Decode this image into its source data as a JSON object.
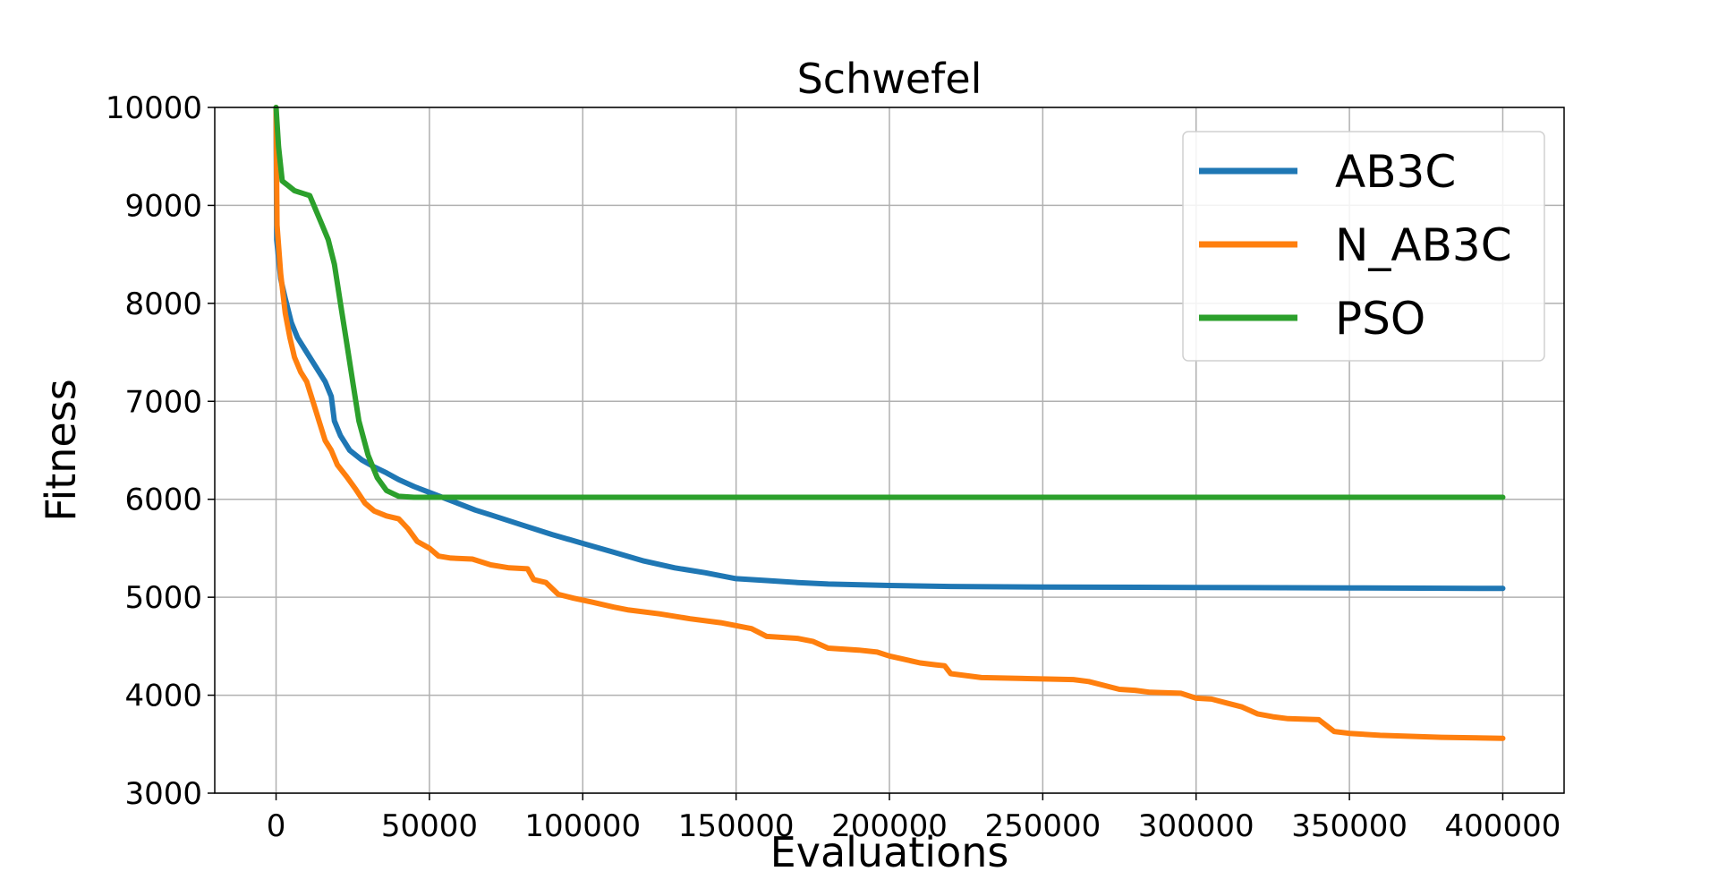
{
  "chart_data": {
    "type": "line",
    "title": "Schwefel",
    "xlabel": "Evaluations",
    "ylabel": "Fitness",
    "xlim": [
      -20000,
      420000
    ],
    "ylim": [
      3000,
      10000
    ],
    "xticks": [
      0,
      50000,
      100000,
      150000,
      200000,
      250000,
      300000,
      350000,
      400000
    ],
    "yticks": [
      3000,
      4000,
      5000,
      6000,
      7000,
      8000,
      9000,
      10000
    ],
    "grid": true,
    "legend_position": "top-right",
    "series": [
      {
        "name": "AB3C",
        "color": "#1f77b4",
        "points": [
          [
            0,
            10000
          ],
          [
            200,
            8650
          ],
          [
            1500,
            8250
          ],
          [
            3000,
            8050
          ],
          [
            5000,
            7800
          ],
          [
            7000,
            7650
          ],
          [
            10000,
            7500
          ],
          [
            13000,
            7350
          ],
          [
            16000,
            7200
          ],
          [
            18000,
            7050
          ],
          [
            19000,
            6800
          ],
          [
            21000,
            6650
          ],
          [
            24000,
            6500
          ],
          [
            28000,
            6400
          ],
          [
            32000,
            6330
          ],
          [
            36000,
            6270
          ],
          [
            40000,
            6200
          ],
          [
            45000,
            6130
          ],
          [
            50000,
            6070
          ],
          [
            55000,
            6010
          ],
          [
            60000,
            5950
          ],
          [
            65000,
            5890
          ],
          [
            70000,
            5840
          ],
          [
            80000,
            5740
          ],
          [
            90000,
            5640
          ],
          [
            100000,
            5550
          ],
          [
            110000,
            5460
          ],
          [
            120000,
            5370
          ],
          [
            130000,
            5300
          ],
          [
            140000,
            5250
          ],
          [
            150000,
            5190
          ],
          [
            160000,
            5170
          ],
          [
            170000,
            5150
          ],
          [
            180000,
            5135
          ],
          [
            200000,
            5120
          ],
          [
            220000,
            5110
          ],
          [
            250000,
            5105
          ],
          [
            300000,
            5100
          ],
          [
            350000,
            5095
          ],
          [
            400000,
            5090
          ]
        ]
      },
      {
        "name": "N_AB3C",
        "color": "#ff7f0e",
        "points": [
          [
            0,
            10000
          ],
          [
            300,
            8800
          ],
          [
            1500,
            8300
          ],
          [
            3000,
            7900
          ],
          [
            4500,
            7650
          ],
          [
            6000,
            7450
          ],
          [
            8000,
            7300
          ],
          [
            10000,
            7200
          ],
          [
            12000,
            7000
          ],
          [
            14000,
            6800
          ],
          [
            16000,
            6600
          ],
          [
            18000,
            6500
          ],
          [
            20000,
            6350
          ],
          [
            23000,
            6230
          ],
          [
            26000,
            6100
          ],
          [
            29000,
            5960
          ],
          [
            32000,
            5880
          ],
          [
            36000,
            5830
          ],
          [
            40000,
            5800
          ],
          [
            43000,
            5700
          ],
          [
            46000,
            5570
          ],
          [
            50000,
            5500
          ],
          [
            53000,
            5420
          ],
          [
            57000,
            5400
          ],
          [
            64000,
            5390
          ],
          [
            70000,
            5330
          ],
          [
            76000,
            5300
          ],
          [
            82000,
            5290
          ],
          [
            84000,
            5180
          ],
          [
            88000,
            5150
          ],
          [
            92000,
            5030
          ],
          [
            97000,
            4990
          ],
          [
            103000,
            4950
          ],
          [
            110000,
            4900
          ],
          [
            115000,
            4870
          ],
          [
            125000,
            4830
          ],
          [
            135000,
            4780
          ],
          [
            145000,
            4740
          ],
          [
            155000,
            4680
          ],
          [
            160000,
            4600
          ],
          [
            170000,
            4580
          ],
          [
            175000,
            4550
          ],
          [
            180000,
            4480
          ],
          [
            190000,
            4460
          ],
          [
            196000,
            4440
          ],
          [
            200000,
            4400
          ],
          [
            210000,
            4330
          ],
          [
            215000,
            4310
          ],
          [
            218000,
            4300
          ],
          [
            220000,
            4220
          ],
          [
            230000,
            4180
          ],
          [
            245000,
            4170
          ],
          [
            260000,
            4160
          ],
          [
            265000,
            4140
          ],
          [
            270000,
            4100
          ],
          [
            275000,
            4060
          ],
          [
            280000,
            4050
          ],
          [
            285000,
            4030
          ],
          [
            295000,
            4020
          ],
          [
            300000,
            3970
          ],
          [
            305000,
            3960
          ],
          [
            310000,
            3920
          ],
          [
            315000,
            3880
          ],
          [
            320000,
            3810
          ],
          [
            325000,
            3780
          ],
          [
            330000,
            3760
          ],
          [
            340000,
            3750
          ],
          [
            345000,
            3630
          ],
          [
            350000,
            3610
          ],
          [
            360000,
            3590
          ],
          [
            370000,
            3580
          ],
          [
            380000,
            3570
          ],
          [
            400000,
            3560
          ]
        ]
      },
      {
        "name": "PSO",
        "color": "#2ca02c",
        "points": [
          [
            0,
            10000
          ],
          [
            800,
            9600
          ],
          [
            2000,
            9250
          ],
          [
            4000,
            9200
          ],
          [
            6000,
            9150
          ],
          [
            9000,
            9120
          ],
          [
            11000,
            9100
          ],
          [
            13000,
            8950
          ],
          [
            15000,
            8800
          ],
          [
            17000,
            8650
          ],
          [
            19000,
            8400
          ],
          [
            21000,
            8000
          ],
          [
            23000,
            7600
          ],
          [
            25000,
            7200
          ],
          [
            27000,
            6800
          ],
          [
            30000,
            6450
          ],
          [
            33000,
            6220
          ],
          [
            36000,
            6090
          ],
          [
            40000,
            6030
          ],
          [
            45000,
            6020
          ],
          [
            60000,
            6020
          ],
          [
            130000,
            6020
          ],
          [
            400000,
            6020
          ]
        ]
      }
    ]
  }
}
